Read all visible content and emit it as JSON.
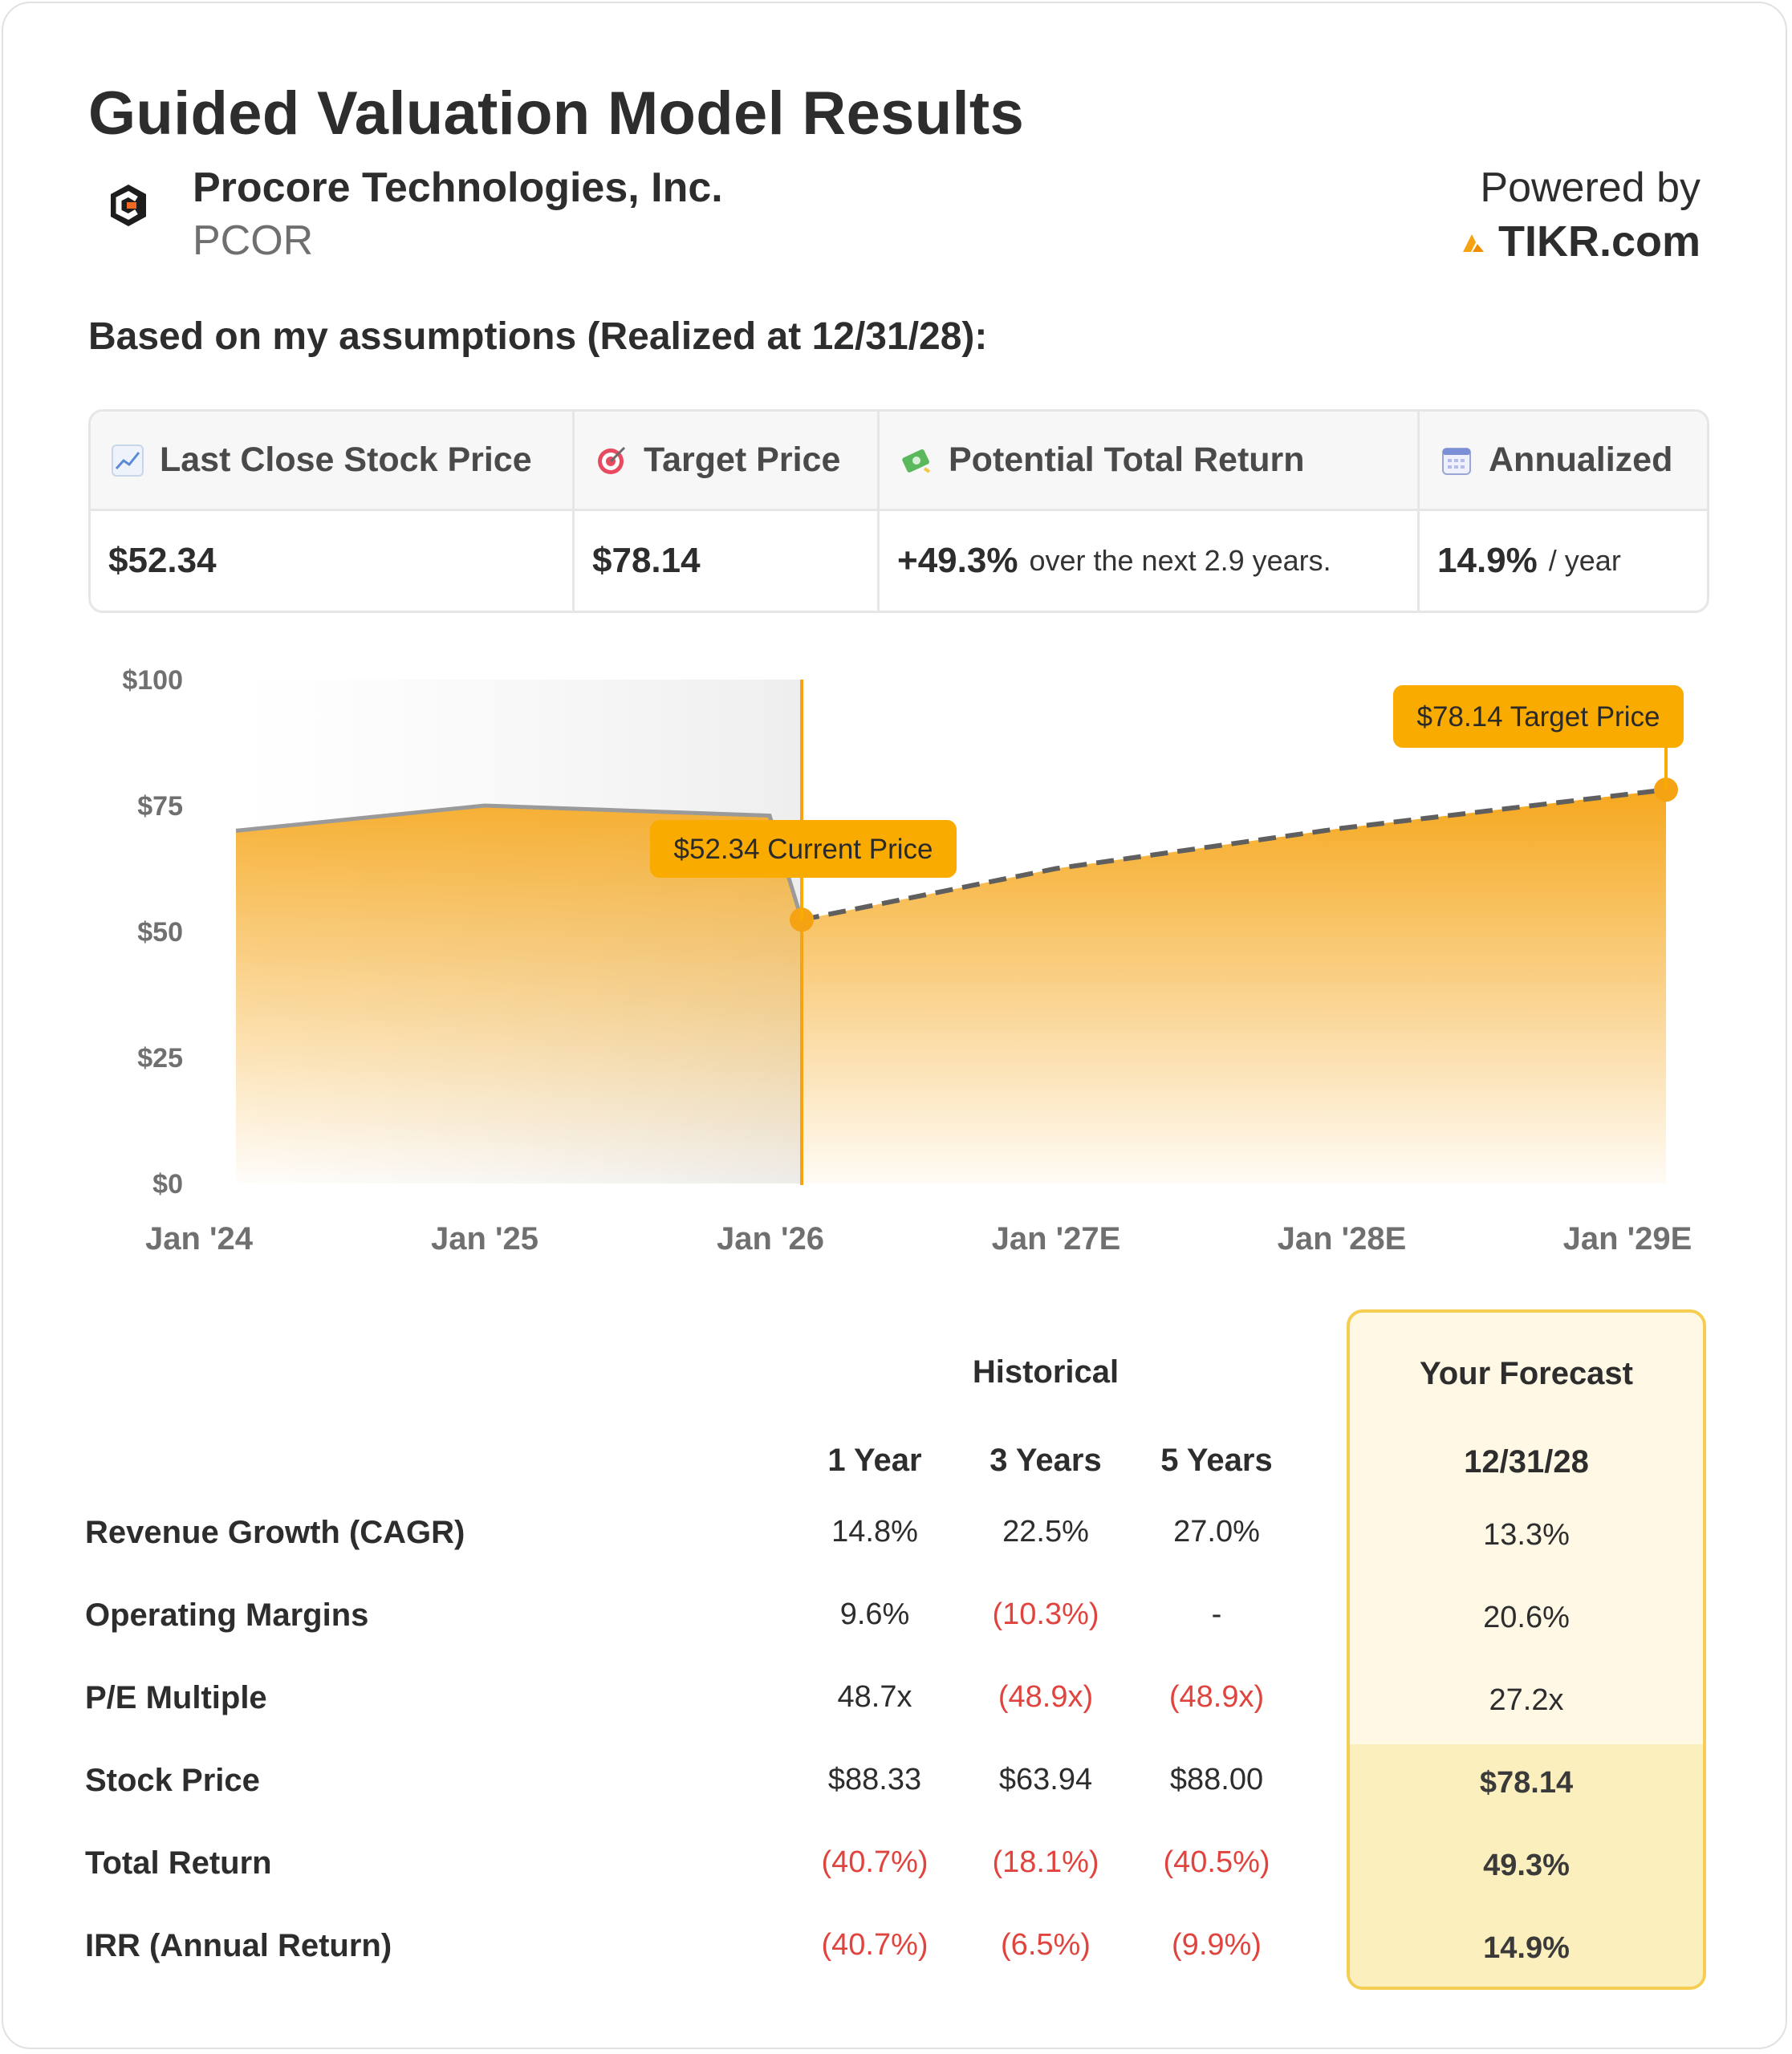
{
  "header": {
    "title": "Guided Valuation Model Results",
    "company_name": "Procore Technologies, Inc.",
    "ticker": "PCOR",
    "powered_by": "Powered by",
    "brand": "TIKR.com"
  },
  "subtitle": "Based on my assumptions (Realized at 12/31/28):",
  "summary": {
    "columns": [
      {
        "label": "Last Close Stock Price",
        "icon": "chart-trend-icon",
        "value": "$52.34",
        "suffix": ""
      },
      {
        "label": "Target Price",
        "icon": "target-icon",
        "value": "$78.14",
        "suffix": ""
      },
      {
        "label": "Potential Total Return",
        "icon": "money-icon",
        "value": "+49.3%",
        "suffix": "over the next 2.9 years."
      },
      {
        "label": "Annualized",
        "icon": "calendar-icon",
        "value": "14.9%",
        "suffix": "/ year"
      }
    ]
  },
  "colors": {
    "accent": "#f5a312",
    "accent_dark": "#f08c00",
    "negative": "#e0443e",
    "forecast_border": "#f4cd52"
  },
  "chart_data": {
    "type": "area",
    "y_tick_labels": [
      "$0",
      "$25",
      "$50",
      "$75",
      "$100"
    ],
    "ylim": [
      0,
      100
    ],
    "x_tick_labels": [
      "Jan '24",
      "Jan '25",
      "Jan '26",
      "Jan '27E",
      "Jan '28E",
      "Jan '29E"
    ],
    "x_tick_dates": [
      "2024-01-01",
      "2025-01-01",
      "2026-01-01",
      "2027-01-01",
      "2028-01-01",
      "2029-01-01"
    ],
    "historical": {
      "dates": [
        "2024-01-01",
        "2025-01-01",
        "2025-12-31",
        "2026-02-10"
      ],
      "values": [
        70,
        75,
        73,
        52.34
      ]
    },
    "forecast": {
      "dates": [
        "2026-02-10",
        "2027-01-01",
        "2028-01-01",
        "2028-12-31"
      ],
      "values": [
        52.34,
        62.5,
        70.5,
        78.14
      ]
    },
    "current_price": {
      "date": "2026-02-10",
      "value": 52.34,
      "label": "$52.34 Current Price"
    },
    "target_price": {
      "date": "2028-12-31",
      "value": 78.14,
      "label": "$78.14 Target Price"
    }
  },
  "table": {
    "historical_header": "Historical",
    "forecast_header": "Your Forecast",
    "columns": [
      "1 Year",
      "3 Years",
      "5 Years"
    ],
    "forecast_column": "12/31/28",
    "rows": [
      {
        "label": "Revenue Growth (CAGR)",
        "values": [
          "14.8%",
          "22.5%",
          "27.0%"
        ],
        "neg": [
          false,
          false,
          false
        ],
        "forecast": "13.3%",
        "forecast_bold": false
      },
      {
        "label": "Operating Margins",
        "values": [
          "9.6%",
          "(10.3%)",
          "-"
        ],
        "neg": [
          false,
          true,
          false
        ],
        "forecast": "20.6%",
        "forecast_bold": false
      },
      {
        "label": "P/E Multiple",
        "values": [
          "48.7x",
          "(48.9x)",
          "(48.9x)"
        ],
        "neg": [
          false,
          true,
          true
        ],
        "forecast": "27.2x",
        "forecast_bold": false
      },
      {
        "label": "Stock Price",
        "values": [
          "$88.33",
          "$63.94",
          "$88.00"
        ],
        "neg": [
          false,
          false,
          false
        ],
        "forecast": "$78.14",
        "forecast_bold": true
      },
      {
        "label": "Total Return",
        "values": [
          "(40.7%)",
          "(18.1%)",
          "(40.5%)"
        ],
        "neg": [
          true,
          true,
          true
        ],
        "forecast": "49.3%",
        "forecast_bold": true
      },
      {
        "label": "IRR (Annual Return)",
        "values": [
          "(40.7%)",
          "(6.5%)",
          "(9.9%)"
        ],
        "neg": [
          true,
          true,
          true
        ],
        "forecast": "14.9%",
        "forecast_bold": true
      }
    ]
  }
}
